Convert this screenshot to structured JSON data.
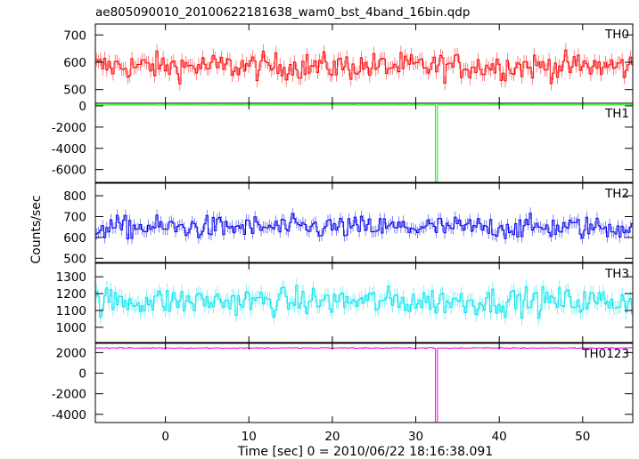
{
  "chart_data": {
    "type": "line",
    "title": "ae805090010_20100622181638_wam0_bst_4band_16bin.qdp",
    "xlabel": "Time [sec] 0 = 2010/06/22 18:16:38.091",
    "ylabel": "Counts/sec",
    "xlim": [
      -8.4,
      56
    ],
    "xticks": [
      0,
      10,
      20,
      30,
      40,
      50
    ],
    "grid": false,
    "legend": "none",
    "time_resolution_s": 0.25,
    "panels": [
      {
        "name": "TH0",
        "color": "#ff0000",
        "ylim": [
          450,
          740
        ],
        "yticks": [
          500,
          600,
          700
        ],
        "mean": 585,
        "noise": 45,
        "spike": null
      },
      {
        "name": "TH1",
        "color": "#00ee00",
        "ylim": [
          -7200,
          250
        ],
        "yticks": [
          0,
          -2000,
          -4000,
          -6000
        ],
        "mean": 100,
        "noise": 12,
        "spike": {
          "t": 32.5,
          "value": -7200
        }
      },
      {
        "name": "TH2",
        "color": "#0000ee",
        "ylim": [
          480,
          860
        ],
        "yticks": [
          500,
          600,
          700,
          800
        ],
        "mean": 648,
        "noise": 50,
        "spike": null
      },
      {
        "name": "TH3",
        "color": "#00e5ee",
        "ylim": [
          910,
          1380
        ],
        "yticks": [
          1000,
          1100,
          1200,
          1300
        ],
        "mean": 1155,
        "noise": 75,
        "spike": null
      },
      {
        "name": "TH0123",
        "color": "#ee00ee",
        "ylim": [
          -4800,
          2900
        ],
        "yticks": [
          2000,
          0,
          -2000,
          -4000
        ],
        "mean": 2450,
        "noise": 40,
        "spike": {
          "t": 32.5,
          "value": -4800
        }
      }
    ]
  }
}
